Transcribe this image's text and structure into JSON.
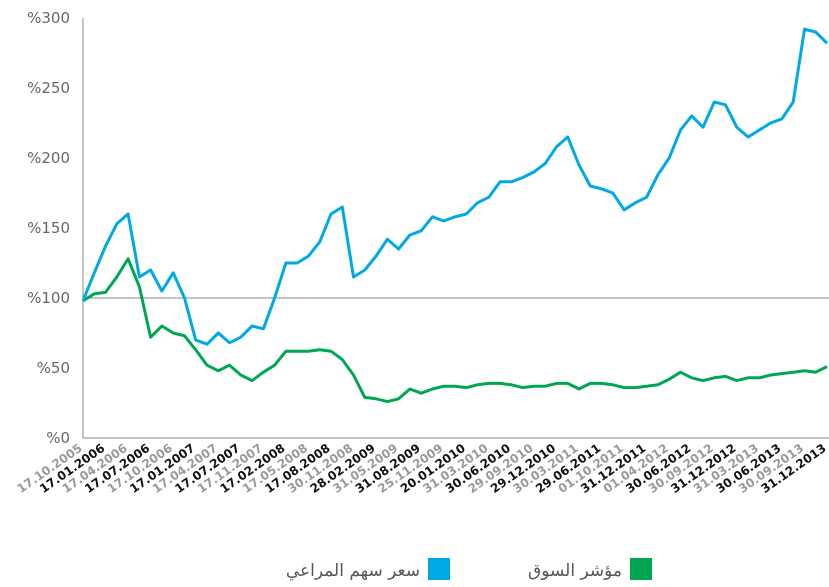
{
  "chart_data": {
    "type": "line",
    "categories": [
      "17.10.2005",
      null,
      "17.01.2006",
      null,
      "17.04.2006",
      null,
      "17.07.2006",
      null,
      "17.10.2006",
      null,
      "17.01.2007",
      null,
      "17.04.2007",
      null,
      "17.07.2007",
      null,
      "17.11.2007",
      null,
      "17.02.2008",
      null,
      "17.05.2008",
      null,
      "17.08.2008",
      null,
      "30.11.2008",
      null,
      "28.02.2009",
      null,
      "31.05.2009",
      null,
      "31.08.2009",
      null,
      "25.11.2009",
      null,
      "20.01.2010",
      null,
      "31.03.2010",
      null,
      "30.06.2010",
      null,
      "29.09.2010",
      null,
      "29.12.2010",
      null,
      "30.03.2011",
      null,
      "29.06.2011",
      null,
      "01.10.2011",
      null,
      "31.12.2011",
      null,
      "01.04.2012",
      null,
      "30.06.2012",
      null,
      "30.09.2012",
      null,
      "31.12.2012",
      null,
      "31.03.2013",
      null,
      "30.06.2013",
      null,
      "30.09.2013",
      null,
      "31.12.2013"
    ],
    "series": [
      {
        "name": "سعر سهم المراعي",
        "color": "#00a9e6",
        "values": [
          98,
          118,
          137,
          153,
          160,
          115,
          120,
          105,
          118,
          100,
          70,
          67,
          75,
          68,
          72,
          80,
          78,
          100,
          125,
          125,
          130,
          140,
          160,
          165,
          115,
          120,
          130,
          142,
          135,
          145,
          148,
          158,
          155,
          158,
          160,
          168,
          172,
          183,
          183,
          186,
          190,
          196,
          208,
          215,
          195,
          180,
          178,
          175,
          163,
          168,
          172,
          188,
          200,
          220,
          230,
          222,
          240,
          238,
          222,
          215,
          220,
          225,
          228,
          240,
          292,
          290,
          282
        ]
      },
      {
        "name": "مؤشر السوق",
        "color": "#00a651",
        "values": [
          98,
          103,
          104,
          115,
          128,
          108,
          72,
          80,
          75,
          73,
          63,
          52,
          48,
          52,
          45,
          41,
          47,
          52,
          62,
          62,
          62,
          63,
          62,
          56,
          45,
          29,
          28,
          26,
          28,
          35,
          32,
          35,
          37,
          37,
          36,
          38,
          39,
          39,
          38,
          36,
          37,
          37,
          39,
          39,
          35,
          39,
          39,
          38,
          36,
          36,
          37,
          38,
          42,
          47,
          43,
          41,
          43,
          44,
          41,
          43,
          43,
          45,
          46,
          47,
          48,
          47,
          51
        ]
      }
    ],
    "ylim": [
      0,
      300
    ],
    "yticks": [
      {
        "value": 0,
        "label": "%0"
      },
      {
        "value": 50,
        "label": "%50"
      },
      {
        "value": 100,
        "label": "%100"
      },
      {
        "value": 150,
        "label": "%150"
      },
      {
        "value": 200,
        "label": "%200"
      },
      {
        "value": 250,
        "label": "%250"
      },
      {
        "value": 300,
        "label": "%300"
      }
    ],
    "reference_line": 100
  }
}
